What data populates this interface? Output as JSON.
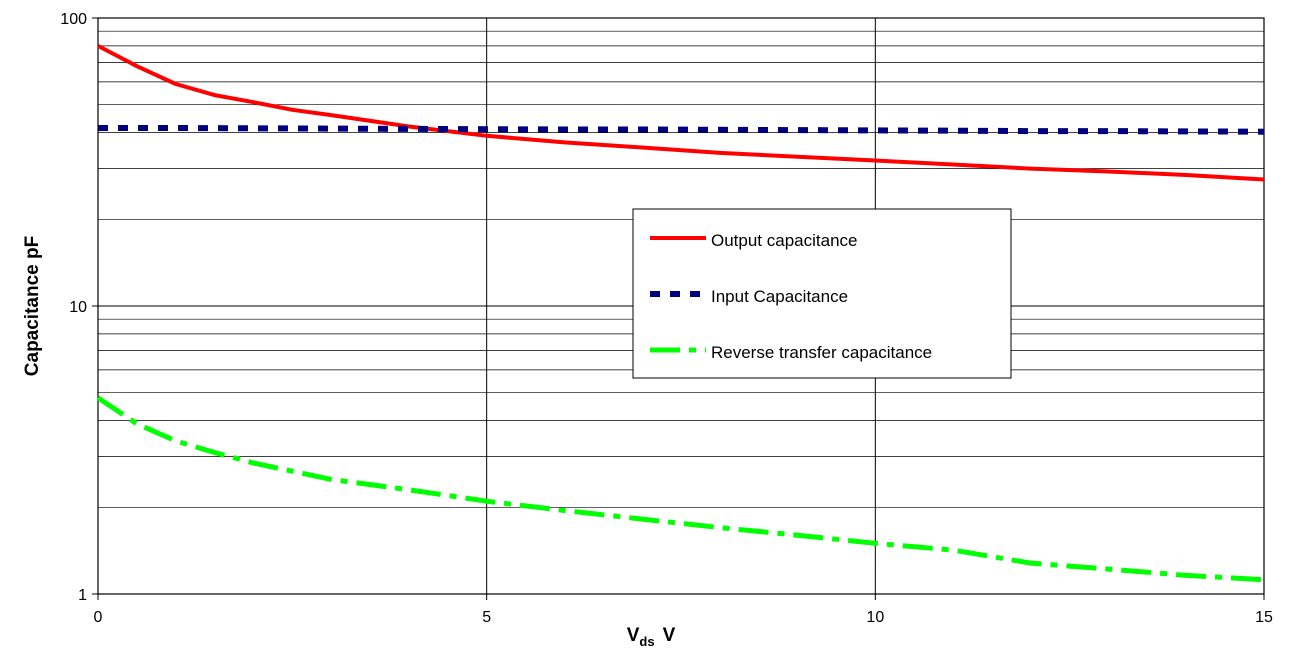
{
  "chart_data": {
    "type": "line",
    "xlabel_main": "V",
    "xlabel_sub": "ds",
    "xlabel_unit": "V",
    "ylabel": "Capacitance pF",
    "xlim": [
      0,
      15
    ],
    "ylim": [
      1,
      100
    ],
    "yscale": "log",
    "grid": true,
    "x_ticks": [
      "0",
      "5",
      "10",
      "15"
    ],
    "y_ticks": [
      "1",
      "10",
      "100"
    ],
    "legend_position": "center-right",
    "series": [
      {
        "name": "Output capacitance",
        "color": "#ff0000",
        "style": "solid",
        "x": [
          0,
          0.5,
          1,
          1.5,
          2,
          2.5,
          3,
          4,
          5,
          6,
          7,
          8,
          9,
          10,
          11,
          12,
          13,
          14,
          15
        ],
        "values": [
          80,
          68,
          59,
          54,
          51,
          48,
          46,
          42,
          39,
          37,
          35.5,
          34,
          33,
          32,
          31,
          30,
          29.3,
          28.5,
          27.5
        ]
      },
      {
        "name": "Input Capacitance",
        "color": "#000080",
        "style": "dashed",
        "x": [
          0,
          1,
          2,
          3,
          4,
          5,
          6,
          7,
          8,
          9,
          10,
          11,
          12,
          13,
          14,
          15
        ],
        "values": [
          41.5,
          41.5,
          41.4,
          41.3,
          41.2,
          41.1,
          41,
          41,
          40.9,
          40.8,
          40.7,
          40.6,
          40.5,
          40.5,
          40.4,
          40.3
        ]
      },
      {
        "name": "Reverse transfer capacitance",
        "color": "#00ff00",
        "style": "dashdot",
        "x": [
          0,
          0.5,
          1,
          1.5,
          2,
          3,
          4,
          5,
          6,
          7,
          8,
          9,
          10,
          11,
          12,
          13,
          14,
          15
        ],
        "values": [
          4.8,
          3.9,
          3.4,
          3.1,
          2.85,
          2.5,
          2.3,
          2.1,
          1.95,
          1.82,
          1.7,
          1.6,
          1.5,
          1.42,
          1.28,
          1.22,
          1.16,
          1.12
        ]
      }
    ]
  }
}
